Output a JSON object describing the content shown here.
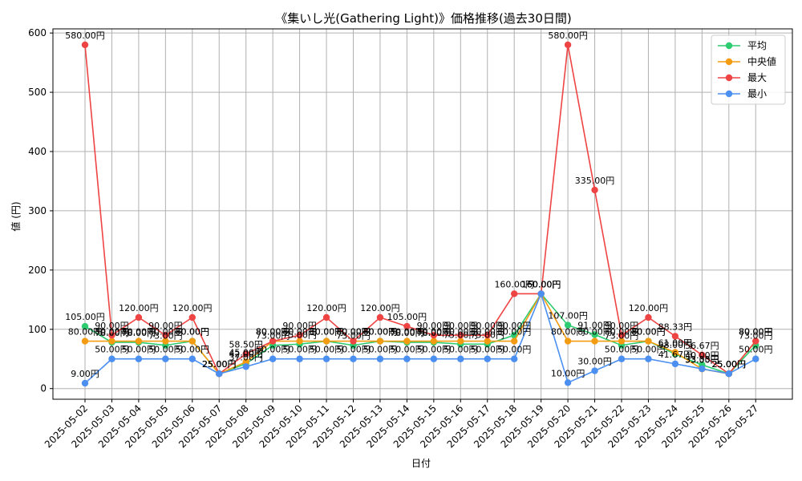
{
  "chart_data": {
    "type": "line",
    "title": "《集いし光(Gathering Light)》価格推移(過去30日間)",
    "xlabel": "日付",
    "ylabel": "値 (円)",
    "ylim": [
      -18,
      607
    ],
    "yticks": [
      0,
      100,
      200,
      300,
      400,
      500,
      600
    ],
    "grid": true,
    "legend_position": "top-right",
    "label_suffix": "円",
    "categories": [
      "2025-05-02",
      "2025-05-03",
      "2025-05-04",
      "2025-05-05",
      "2025-05-06",
      "2025-05-07",
      "2025-05-08",
      "2025-05-09",
      "2025-05-10",
      "2025-05-11",
      "2025-05-12",
      "2025-05-13",
      "2025-05-14",
      "2025-05-15",
      "2025-05-16",
      "2025-05-17",
      "2025-05-18",
      "2025-05-19",
      "2025-05-20",
      "2025-05-21",
      "2025-05-22",
      "2025-05-23",
      "2025-05-24",
      "2025-05-25",
      "2025-05-26",
      "2025-05-27"
    ],
    "series": [
      {
        "name": "平均",
        "color": "#2ecc71",
        "label_offset": 8,
        "values": [
          105,
          78,
          78,
          73,
          80,
          25,
          42,
          73,
          75,
          80,
          73,
          80,
          78,
          78,
          75,
          75,
          90,
          160,
          107,
          91,
          73,
          80,
          58,
          40,
          25,
          73
        ]
      },
      {
        "name": "中央値",
        "color": "#f39c12",
        "label_offset": 8,
        "values": [
          80,
          80,
          80,
          80,
          80,
          25,
          45,
          80,
          80,
          80,
          80,
          80,
          80,
          80,
          80,
          80,
          80,
          160,
          80,
          80,
          80,
          80,
          61,
          33,
          25,
          80
        ]
      },
      {
        "name": "最大",
        "color": "#ef4444",
        "label_offset": 8,
        "values": [
          580,
          90,
          120,
          90,
          120,
          25,
          58.5,
          80,
          90,
          120,
          80,
          120,
          105,
          90,
          90,
          90,
          160,
          160,
          580,
          335,
          90,
          120,
          88.33,
          56.67,
          25,
          80
        ]
      },
      {
        "name": "最小",
        "color": "#4b8ff0",
        "label_offset": 8,
        "values": [
          9,
          50,
          50,
          50,
          50,
          25,
          37,
          50,
          50,
          50,
          50,
          50,
          50,
          50,
          50,
          50,
          50,
          160,
          10,
          30,
          50,
          50,
          41.67,
          33.33,
          25,
          50
        ]
      }
    ]
  }
}
